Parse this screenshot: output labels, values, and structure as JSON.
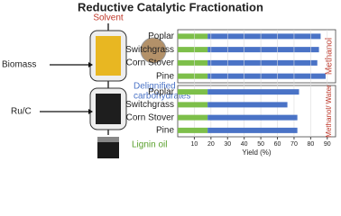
{
  "title": "Reductive Catalytic Fractionation",
  "diagram": {
    "solvent": "Solvent",
    "biomass": "Biomass",
    "catalyst": "Ru/C",
    "carbohydrates": [
      "Delignified",
      "carbohydrates"
    ],
    "lignin_oil": "Lignin oil"
  },
  "chart_data": [
    {
      "type": "bar",
      "orientation": "horizontal",
      "stacked": true,
      "panel_label": "Methanol",
      "categories": [
        "Poplar",
        "Switchgrass",
        "Corn Stover",
        "Pine"
      ],
      "series": [
        {
          "color": "#7dbf4a",
          "values": [
            18,
            18,
            18,
            18
          ]
        },
        {
          "color": "#4a73c6",
          "values": [
            68,
            67,
            66,
            71
          ]
        }
      ],
      "xlim": [
        0,
        95
      ]
    },
    {
      "type": "bar",
      "orientation": "horizontal",
      "stacked": true,
      "panel_label": "Methanol/ Water",
      "categories": [
        "Poplar",
        "Switchgrass",
        "Corn Stover",
        "Pine"
      ],
      "series": [
        {
          "color": "#7dbf4a",
          "values": [
            18,
            18,
            18,
            18
          ]
        },
        {
          "color": "#4a73c6",
          "values": [
            55,
            48,
            54,
            54
          ]
        }
      ],
      "xlim": [
        0,
        95
      ],
      "xticks": [
        10,
        20,
        30,
        40,
        50,
        60,
        70,
        80,
        90
      ],
      "xlabel": "Yield (%)",
      "grid": true
    }
  ]
}
